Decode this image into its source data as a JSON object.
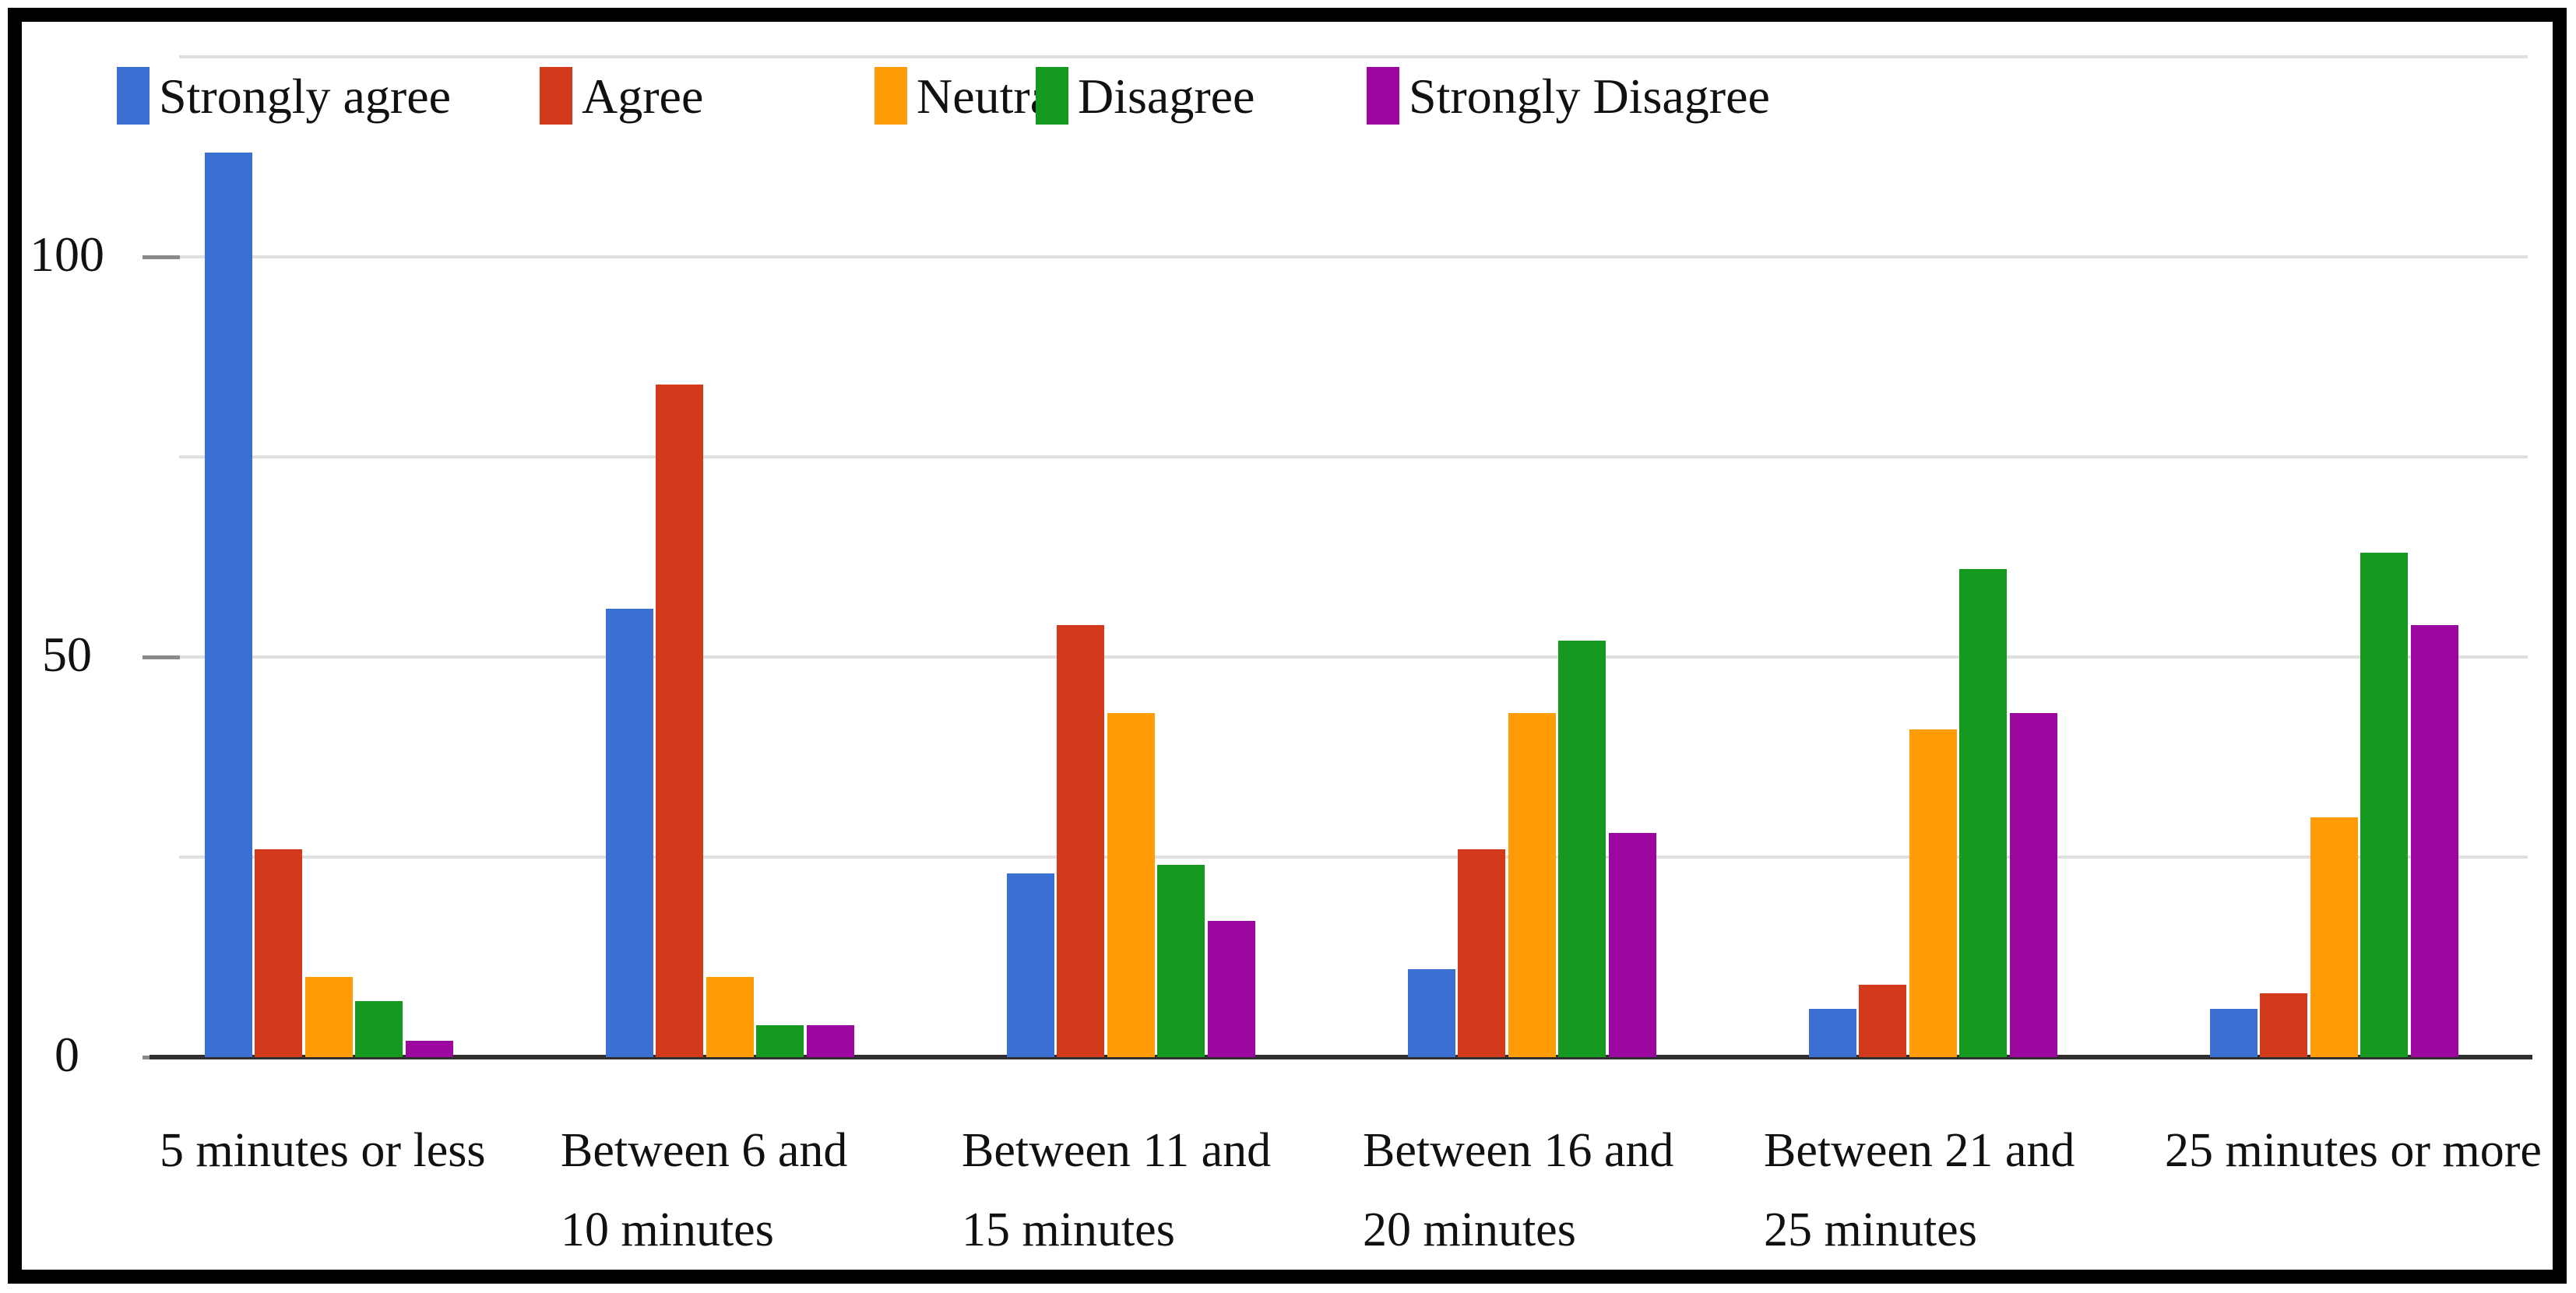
{
  "chart_data": {
    "type": "bar",
    "title": "",
    "categories": [
      [
        "5 minutes or less"
      ],
      [
        "Between 6 and",
        "10 minutes"
      ],
      [
        "Between 11 and",
        "15 minutes"
      ],
      [
        "Between 16 and",
        "20 minutes"
      ],
      [
        "Between 21 and",
        "25 minutes"
      ],
      [
        "25 minutes or more"
      ]
    ],
    "series": [
      {
        "name": "Strongly agree",
        "color": "#3B6FD1",
        "values": [
          113,
          56,
          23,
          11,
          6,
          6
        ]
      },
      {
        "name": "Agree",
        "color": "#D23A1B",
        "values": [
          26,
          84,
          54,
          26,
          9,
          8
        ]
      },
      {
        "name": "Neutral",
        "color": "#FF9C06",
        "values": [
          10,
          10,
          43,
          43,
          41,
          30
        ]
      },
      {
        "name": "Disagree",
        "color": "#16991F",
        "values": [
          7,
          4,
          24,
          52,
          61,
          63
        ]
      },
      {
        "name": "Strongly Disagree",
        "color": "#9C07A0",
        "values": [
          2,
          4,
          17,
          28,
          43,
          54
        ]
      }
    ],
    "xlabel": "",
    "ylabel": "",
    "y_tick_labels": [
      "0",
      "50",
      "100"
    ],
    "y_ticks": [
      0,
      50,
      100
    ],
    "gridlines": [
      25,
      50,
      75,
      100,
      125
    ],
    "ylim": [
      0,
      130
    ],
    "grid": true,
    "legend_position": "top",
    "colors": {
      "gridline": "#E0E0E0",
      "tick": "#8A8A8A",
      "axis_line": "#2F2F2F",
      "text": "#111111",
      "background": "#FFFFFF",
      "frame_border": "#000000"
    }
  }
}
